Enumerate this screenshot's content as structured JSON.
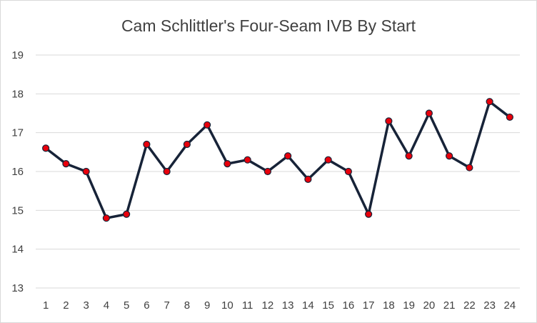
{
  "chart_data": {
    "type": "line",
    "title": "Cam Schlittler's Four-Seam IVB By Start",
    "xlabel": "",
    "ylabel": "",
    "categories": [
      "1",
      "2",
      "3",
      "4",
      "5",
      "6",
      "7",
      "8",
      "9",
      "10",
      "11",
      "12",
      "13",
      "14",
      "15",
      "16",
      "17",
      "18",
      "19",
      "20",
      "21",
      "22",
      "23",
      "24"
    ],
    "series": [
      {
        "values": [
          16.6,
          16.2,
          16.0,
          14.8,
          14.9,
          16.7,
          16.0,
          16.7,
          17.2,
          16.2,
          16.3,
          16.0,
          16.4,
          15.8,
          16.3,
          16.0,
          14.9,
          17.3,
          16.4,
          17.5,
          16.4,
          16.1,
          17.8,
          17.4
        ],
        "line_color": "#172338",
        "marker_color": "#e8000b",
        "marker_edge_color": "#172338"
      }
    ],
    "ylim": [
      13,
      19
    ],
    "yticks": [
      "13",
      "14",
      "15",
      "16",
      "17",
      "18",
      "19"
    ],
    "grid": "horizontal",
    "gridline_color": "#d9d9d9",
    "legend": "none"
  }
}
